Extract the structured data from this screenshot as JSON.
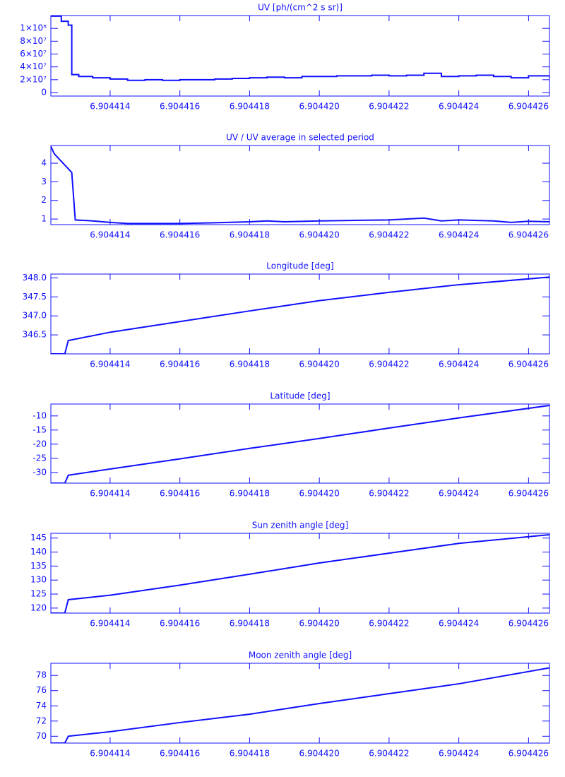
{
  "chart_data": [
    {
      "type": "line",
      "drawstyle": "steps-post",
      "title": "UV [ph/(cm^2 s sr)]",
      "color": "#1010ff",
      "x": [
        6.9044123,
        6.9044126,
        6.9044128,
        6.9044129,
        6.9044131,
        6.9044135,
        6.904414,
        6.9044145,
        6.904415,
        6.9044155,
        6.904416,
        6.9044165,
        6.904417,
        6.9044175,
        6.904418,
        6.9044185,
        6.904419,
        6.9044195,
        6.90442,
        6.9044205,
        6.904421,
        6.9044215,
        6.904422,
        6.9044225,
        6.904423,
        6.9044235,
        6.904424,
        6.9044245,
        6.904425,
        6.9044255,
        6.904426,
        6.9044266
      ],
      "values": [
        119000000,
        111000000,
        105000000,
        28000000,
        25000000,
        23000000,
        21000000,
        19000000,
        20000000,
        19000000,
        20000000,
        20000000,
        21000000,
        22000000,
        23000000,
        24000000,
        23000000,
        25000000,
        25000000,
        26000000,
        26000000,
        27000000,
        26000000,
        27000000,
        30000000,
        25000000,
        26000000,
        27000000,
        25000000,
        23000000,
        26000000,
        23000000
      ],
      "xlim": [
        6.9044123,
        6.9044266
      ],
      "xticks": [
        6.904414,
        6.904416,
        6.904418,
        {
          "value": 6.90442,
          "label": "6.904420"
        },
        6.904422,
        6.904424,
        6.904426
      ],
      "ylim": [
        -5500000,
        120000000
      ],
      "yticks": [
        {
          "value": 0,
          "label": "0"
        },
        {
          "value": 20000000,
          "label": "2×10⁷"
        },
        {
          "value": 40000000,
          "label": "4×10⁷"
        },
        {
          "value": 60000000,
          "label": "6×10⁷"
        },
        {
          "value": 80000000,
          "label": "8×10⁷"
        },
        {
          "value": 100000000,
          "label": "1×10⁸"
        }
      ]
    },
    {
      "type": "line",
      "title": "UV / UV average in selected period",
      "color": "#1010ff",
      "x": [
        6.9044123,
        6.9044124,
        6.9044126,
        6.9044128,
        6.9044129,
        6.904413,
        6.9044135,
        6.904414,
        6.9044145,
        6.904415,
        6.904416,
        6.904417,
        6.904418,
        6.9044185,
        6.904419,
        6.90442,
        6.904421,
        6.904422,
        6.904423,
        6.9044235,
        6.904424,
        6.904425,
        6.9044255,
        6.904426,
        6.9044266
      ],
      "values": [
        4.9,
        4.5,
        4.1,
        3.7,
        3.5,
        0.95,
        0.9,
        0.82,
        0.76,
        0.76,
        0.76,
        0.8,
        0.85,
        0.9,
        0.85,
        0.9,
        0.93,
        0.95,
        1.05,
        0.9,
        0.95,
        0.9,
        0.82,
        0.88,
        0.85
      ],
      "xlim": [
        6.9044123,
        6.9044266
      ],
      "xticks": [
        6.904414,
        6.904416,
        6.904418,
        {
          "value": 6.90442,
          "label": "6.904420"
        },
        6.904422,
        6.904424,
        6.904426
      ],
      "ylim": [
        0.7,
        4.95
      ],
      "yticks": [
        1,
        2,
        3,
        4
      ]
    },
    {
      "type": "line",
      "title": "Longitude [deg]",
      "color": "#1010ff",
      "x": [
        6.9044123,
        6.9044127,
        6.9044128,
        6.904414,
        6.904416,
        6.904418,
        6.90442,
        6.904422,
        6.904424,
        6.9044266
      ],
      "values": [
        346.0,
        346.0,
        346.35,
        346.57,
        346.85,
        347.13,
        347.4,
        347.62,
        347.82,
        348.02
      ],
      "xlim": [
        6.9044123,
        6.9044266
      ],
      "xticks": [
        6.904414,
        6.904416,
        6.904418,
        {
          "value": 6.90442,
          "label": "6.904420"
        },
        6.904422,
        6.904424,
        6.904426
      ],
      "ylim": [
        346.0,
        348.1
      ],
      "yticks": [
        346.5,
        {
          "value": 347,
          "label": "347.0"
        },
        347.5,
        {
          "value": 348,
          "label": "348.0"
        }
      ]
    },
    {
      "type": "line",
      "title": "Latitude [deg]",
      "color": "#1010ff",
      "x": [
        6.9044123,
        6.9044127,
        6.9044128,
        6.904414,
        6.904416,
        6.904418,
        6.90442,
        6.904422,
        6.904424,
        6.9044266
      ],
      "values": [
        -33.8,
        -33.8,
        -31,
        -28.8,
        -25.2,
        -21.5,
        -18,
        -14.3,
        -10.7,
        -6.3
      ],
      "xlim": [
        6.9044123,
        6.9044266
      ],
      "xticks": [
        6.904414,
        6.904416,
        6.904418,
        {
          "value": 6.90442,
          "label": "6.904420"
        },
        6.904422,
        6.904424,
        6.904426
      ],
      "ylim": [
        -33.8,
        -5.8
      ],
      "yticks": [
        -30,
        -25,
        -20,
        -15,
        -10
      ]
    },
    {
      "type": "line",
      "title": "Sun zenith angle [deg]",
      "color": "#1010ff",
      "x": [
        6.9044123,
        6.9044127,
        6.9044128,
        6.904414,
        6.904416,
        6.904418,
        6.90442,
        6.904422,
        6.904424,
        6.9044266
      ],
      "values": [
        118.2,
        118.2,
        123,
        124.6,
        128.2,
        132.1,
        136.1,
        139.6,
        143.1,
        146.2
      ],
      "xlim": [
        6.9044123,
        6.9044266
      ],
      "xticks": [
        6.904414,
        6.904416,
        6.904418,
        {
          "value": 6.90442,
          "label": "6.904420"
        },
        6.904422,
        6.904424,
        6.904426
      ],
      "ylim": [
        118.2,
        146.7
      ],
      "yticks": [
        120,
        125,
        130,
        135,
        140,
        145
      ]
    },
    {
      "type": "line",
      "title": "Moon zenith angle [deg]",
      "color": "#1010ff",
      "x": [
        6.9044123,
        6.9044127,
        6.9044128,
        6.904414,
        6.904416,
        6.904418,
        6.90442,
        6.904422,
        6.904424,
        6.9044266
      ],
      "values": [
        69.1,
        69.1,
        70,
        70.6,
        71.8,
        72.9,
        74.3,
        75.6,
        76.9,
        79.0
      ],
      "xlim": [
        6.9044123,
        6.9044266
      ],
      "xticks": [
        6.904414,
        6.904416,
        6.904418,
        {
          "value": 6.90442,
          "label": "6.904420"
        },
        6.904422,
        6.904424,
        6.904426
      ],
      "ylim": [
        69.1,
        79.6
      ],
      "yticks": [
        70,
        72,
        74,
        76,
        78
      ]
    }
  ]
}
